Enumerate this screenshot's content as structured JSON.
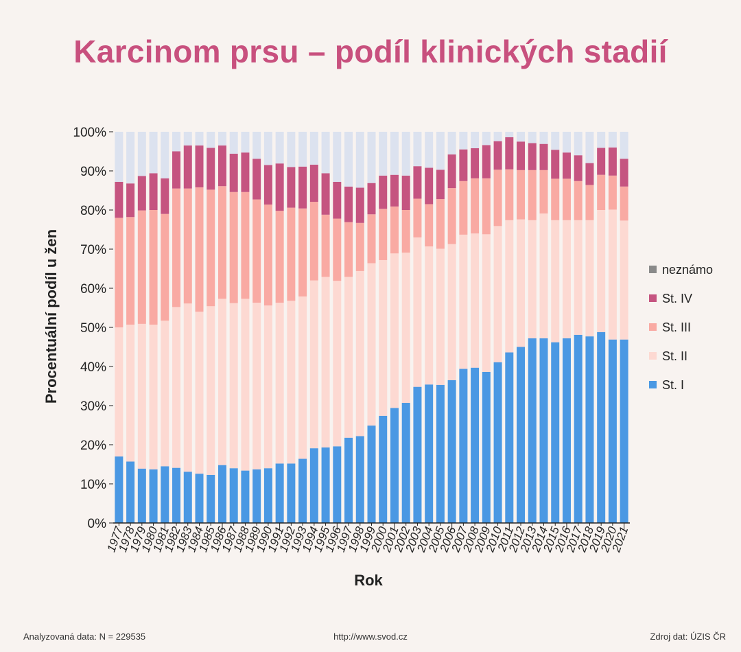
{
  "title": "Karcinom prsu – podíl klinických stadií",
  "footer": {
    "left": "Analyzovaná data: N = 229535",
    "center": "http://www.svod.cz",
    "right": "Zdroj dat: ÚZIS ČR"
  },
  "chart_data": {
    "type": "bar",
    "stacked": true,
    "xlabel": "Rok",
    "ylabel": "Procentuální podíl u žen",
    "ylim": [
      0,
      100
    ],
    "yticks": [
      "0%",
      "10%",
      "20%",
      "30%",
      "40%",
      "50%",
      "60%",
      "70%",
      "80%",
      "90%",
      "100%"
    ],
    "legend_position": "right",
    "categories": [
      "1977",
      "1978",
      "1979",
      "1980",
      "1981",
      "1982",
      "1983",
      "1984",
      "1985",
      "1986",
      "1987",
      "1988",
      "1989",
      "1990",
      "1991",
      "1992",
      "1993",
      "1994",
      "1995",
      "1996",
      "1997",
      "1998",
      "1999",
      "2000",
      "2001",
      "2002",
      "2003",
      "2004",
      "2005",
      "2006",
      "2007",
      "2008",
      "2009",
      "2010",
      "2011",
      "2012",
      "2013",
      "2014",
      "2015",
      "2016",
      "2017",
      "2018",
      "2019",
      "2020",
      "2021"
    ],
    "series": [
      {
        "name": "St. I",
        "color": "#4a98e3",
        "values": [
          17,
          15.7,
          13.9,
          13.7,
          14.5,
          14.1,
          13.1,
          12.6,
          12.3,
          14.8,
          14,
          13.4,
          13.7,
          14,
          15.2,
          15.2,
          16.4,
          19.1,
          19.3,
          19.6,
          21.8,
          22.2,
          24.9,
          27.4,
          29.4,
          30.7,
          34.8,
          35.4,
          35.3,
          36.5,
          39.4,
          39.7,
          38.6,
          41.1,
          43.6,
          45,
          47.2,
          47.2,
          46.2,
          47.2,
          48.1,
          47.7,
          48.8,
          46.9,
          46.9
        ]
      },
      {
        "name": "St. II",
        "color": "#fdd9d2",
        "values": [
          33,
          35,
          37,
          37,
          37.2,
          41.1,
          43,
          41.4,
          43.1,
          42.5,
          42.2,
          43.9,
          42.6,
          41.6,
          41.1,
          41.6,
          41.5,
          42.9,
          43.6,
          42.3,
          41.1,
          42.2,
          41.5,
          39.8,
          39.5,
          38.4,
          38.2,
          35.3,
          34.8,
          34.8,
          34.3,
          34.3,
          35.2,
          34.8,
          33.8,
          32.6,
          30.2,
          31.9,
          31.2,
          30.2,
          29.3,
          29.7,
          31.2,
          33.2,
          30.4
        ]
      },
      {
        "name": "St. III",
        "color": "#f9aaa3",
        "values": [
          28,
          27.5,
          29,
          29.3,
          27.3,
          30.3,
          29.4,
          31.8,
          29.8,
          28.8,
          28.4,
          27.3,
          26.4,
          25.8,
          23.5,
          23.8,
          22.5,
          20.1,
          15.9,
          15.9,
          14,
          12.3,
          12.5,
          13.1,
          12,
          10.9,
          9.9,
          10.8,
          12.7,
          14.3,
          13.7,
          14.1,
          14.3,
          14.4,
          13,
          12.6,
          12.8,
          11.1,
          10.6,
          10.6,
          10,
          9,
          9,
          8.7,
          8.7
        ]
      },
      {
        "name": "St. IV",
        "color": "#c55480",
        "values": [
          9.2,
          8.6,
          8.8,
          9.4,
          9.1,
          9.5,
          11,
          10.7,
          10.7,
          10.4,
          9.8,
          10.1,
          10.4,
          10.1,
          12.1,
          10.4,
          10.7,
          9.5,
          10.6,
          9.4,
          9.1,
          9,
          8,
          8.5,
          8.1,
          8.8,
          8.3,
          9.3,
          7.5,
          8.6,
          8.1,
          7.7,
          8.5,
          7.3,
          8.2,
          7.3,
          6.9,
          6.7,
          7.4,
          6.7,
          6.6,
          5.6,
          6.9,
          7.2,
          7.1
        ]
      },
      {
        "name": "neznámo",
        "color": "#dce2ef",
        "legend_color": "#8a8a8a",
        "values": [
          12.8,
          13.2,
          11.3,
          10.6,
          11.9,
          5,
          3.5,
          3.5,
          4.1,
          3.5,
          5.6,
          5.3,
          6.9,
          8.5,
          8.1,
          9,
          8.9,
          8.4,
          10.6,
          12.8,
          14,
          14.3,
          13.1,
          11.2,
          11,
          11.2,
          8.8,
          9.2,
          9.7,
          5.8,
          4.5,
          4.2,
          3.4,
          2.4,
          1.4,
          2.5,
          2.9,
          3.1,
          4.6,
          5.3,
          6,
          8,
          4.1,
          4,
          6.9
        ]
      }
    ]
  }
}
